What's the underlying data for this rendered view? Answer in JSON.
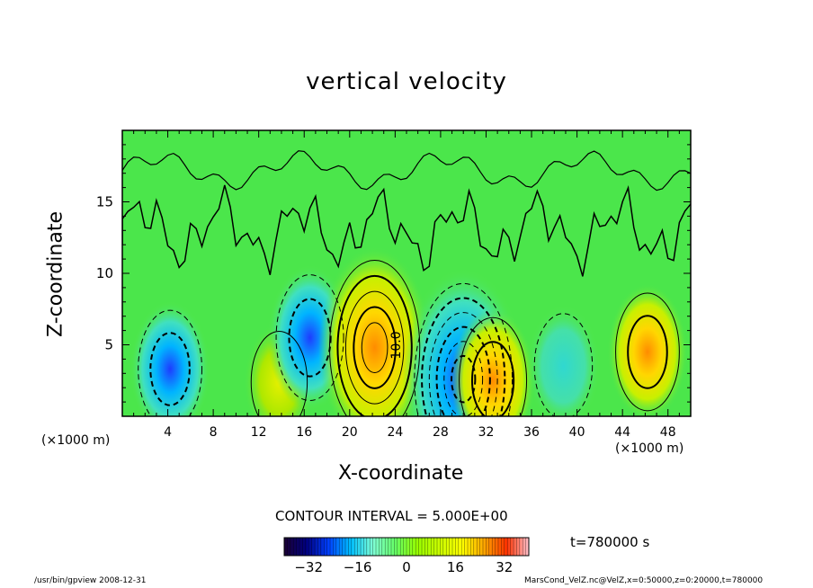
{
  "chart_data": {
    "type": "heatmap",
    "title": "vertical velocity",
    "xlabel": "X-coordinate",
    "ylabel": "Z-coordinate",
    "x_unit_left": "(×1000 m)",
    "x_unit_right": "(×1000 m)",
    "xticks": [
      "4",
      "8",
      "12",
      "16",
      "20",
      "24",
      "28",
      "32",
      "36",
      "40",
      "44",
      "48"
    ],
    "xtick_values": [
      4,
      8,
      12,
      16,
      20,
      24,
      28,
      32,
      36,
      40,
      44,
      48
    ],
    "yticks": [
      "5",
      "10",
      "15"
    ],
    "ytick_values": [
      5,
      10,
      15
    ],
    "xlim": [
      0,
      50
    ],
    "ylim": [
      0,
      20
    ],
    "contour_interval_text": "CONTOUR INTERVAL = 5.000E+00",
    "contour_label": "10.0",
    "colorbar": {
      "ticks": [
        "−32",
        "−16",
        "0",
        "16",
        "32"
      ],
      "tick_values": [
        -32,
        -16,
        0,
        16,
        32
      ],
      "range": [
        -40,
        40
      ],
      "colors": [
        "#1b0033",
        "#000080",
        "#0040ff",
        "#00c0ff",
        "#7fffd4",
        "#66ff66",
        "#99ff00",
        "#ccff00",
        "#ffff00",
        "#ffa500",
        "#ff3300",
        "#ffc0cb"
      ]
    },
    "cells": [
      {
        "name": "downdraft-x4",
        "x": 4.2,
        "z": 3.3,
        "w": -12
      },
      {
        "name": "updraft-x12",
        "x": 13.8,
        "z": 2.4,
        "w": 8
      },
      {
        "name": "downdraft-x16",
        "x": 16.5,
        "z": 5.5,
        "w": -14
      },
      {
        "name": "updraft-x22",
        "x": 22.2,
        "z": 4.8,
        "w": 26
      },
      {
        "name": "downdraft-x30",
        "x": 30,
        "z": 2.6,
        "w": -30
      },
      {
        "name": "updraft-x33",
        "x": 32.6,
        "z": 2.5,
        "w": 14
      },
      {
        "name": "downdraft-x38",
        "x": 38.8,
        "z": 3.5,
        "w": -9
      },
      {
        "name": "updraft-x46",
        "x": 46.2,
        "z": 4.5,
        "w": 12
      }
    ],
    "grid": false
  },
  "time_label": "t=780000 s",
  "footer_left": "/usr/bin/gpview   2008-12-31",
  "footer_right": "MarsCond_VelZ.nc@VelZ,x=0:50000,z=0:20000,t=780000",
  "colors": {
    "background_field": "#4be64b",
    "axes": "#000000"
  }
}
